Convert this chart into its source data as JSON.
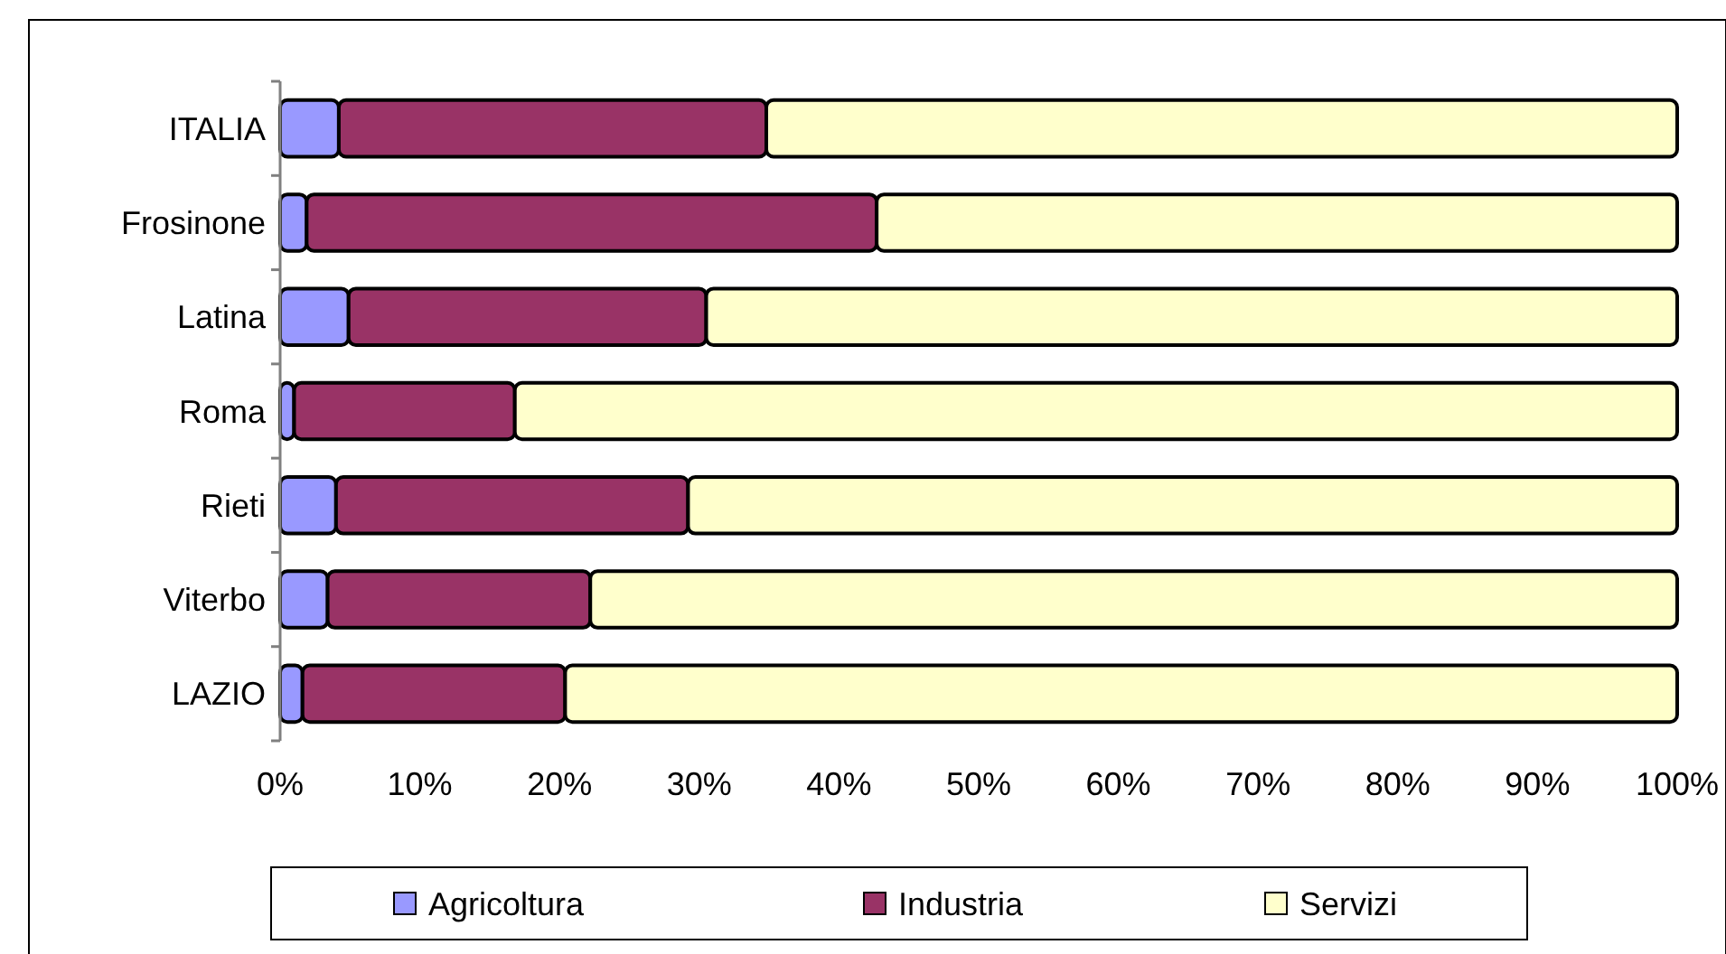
{
  "chart_data": {
    "type": "bar",
    "orientation": "horizontal",
    "stacked": true,
    "categories": [
      "ITALIA",
      "Frosinone",
      "Latina",
      "Roma",
      "Rieti",
      "Viterbo",
      "LAZIO"
    ],
    "series": [
      {
        "name": "Agricoltura",
        "color": "#9999ff",
        "values": [
          4.2,
          1.9,
          4.9,
          1.0,
          4.0,
          3.4,
          1.6
        ]
      },
      {
        "name": "Industria",
        "color": "#993366",
        "values": [
          30.6,
          40.8,
          25.6,
          15.8,
          25.2,
          18.8,
          18.8
        ]
      },
      {
        "name": "Servizi",
        "color": "#ffffcc",
        "values": [
          65.2,
          57.3,
          69.5,
          83.2,
          70.8,
          77.8,
          79.6
        ]
      }
    ],
    "xlim": [
      0,
      100
    ],
    "xticks": [
      {
        "value": 0,
        "label": "0%"
      },
      {
        "value": 10,
        "label": "10%"
      },
      {
        "value": 20,
        "label": "20%"
      },
      {
        "value": 30,
        "label": "30%"
      },
      {
        "value": 40,
        "label": "40%"
      },
      {
        "value": 50,
        "label": "50%"
      },
      {
        "value": 60,
        "label": "60%"
      },
      {
        "value": 70,
        "label": "70%"
      },
      {
        "value": 80,
        "label": "80%"
      },
      {
        "value": 90,
        "label": "90%"
      },
      {
        "value": 100,
        "label": "100%"
      }
    ],
    "grid": false,
    "legend": "bottom"
  }
}
